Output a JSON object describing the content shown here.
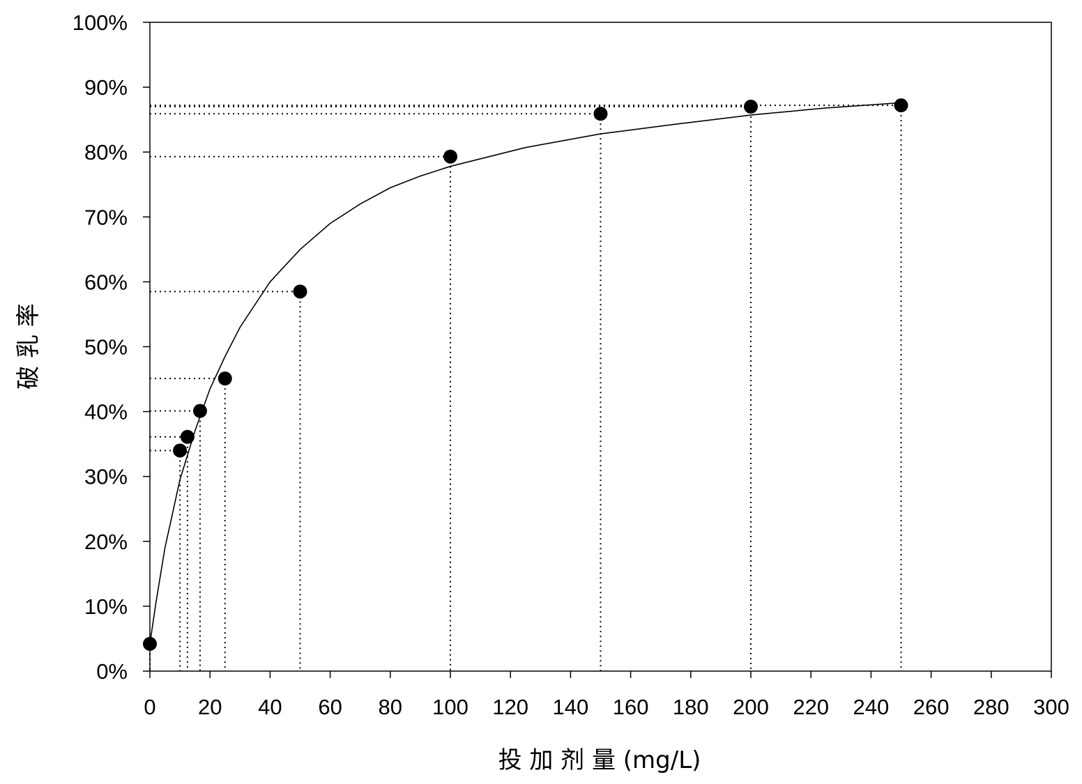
{
  "chart_data": {
    "type": "scatter",
    "title": "",
    "xlabel": "投 加 剂 量 (mg/L)",
    "ylabel": "破 乳 率",
    "xlim": [
      0,
      300
    ],
    "ylim": [
      0,
      100
    ],
    "x_ticks": [
      "0",
      "20",
      "40",
      "60",
      "80",
      "100",
      "120",
      "140",
      "160",
      "180",
      "200",
      "220",
      "240",
      "260",
      "280",
      "300"
    ],
    "y_ticks": [
      "0%",
      "10%",
      "20%",
      "30%",
      "40%",
      "50%",
      "60%",
      "70%",
      "80%",
      "90%",
      "100%"
    ],
    "grid": false,
    "legend": "none",
    "series": [
      {
        "points": [
          {
            "x": 0,
            "y": 4.2
          },
          {
            "x": 10,
            "y": 34.0
          },
          {
            "x": 12.5,
            "y": 36.1
          },
          {
            "x": 16.7,
            "y": 40.1
          },
          {
            "x": 25,
            "y": 45.1
          },
          {
            "x": 50,
            "y": 58.5
          },
          {
            "x": 100,
            "y": 79.3
          },
          {
            "x": 150,
            "y": 85.9
          },
          {
            "x": 200,
            "y": 87.0
          },
          {
            "x": 250,
            "y": 87.2
          }
        ],
        "marker_color": "#000000",
        "reference_lines": "dotted"
      }
    ],
    "fitted_curve": {
      "color": "#000000",
      "points": [
        {
          "x": 0,
          "y": 4.2
        },
        {
          "x": 2,
          "y": 10.5
        },
        {
          "x": 5,
          "y": 19
        },
        {
          "x": 10,
          "y": 29.5
        },
        {
          "x": 15,
          "y": 37
        },
        {
          "x": 20,
          "y": 43.5
        },
        {
          "x": 25,
          "y": 48.5
        },
        {
          "x": 30,
          "y": 53
        },
        {
          "x": 40,
          "y": 60
        },
        {
          "x": 50,
          "y": 65
        },
        {
          "x": 60,
          "y": 69
        },
        {
          "x": 70,
          "y": 72
        },
        {
          "x": 80,
          "y": 74.5
        },
        {
          "x": 90,
          "y": 76.3
        },
        {
          "x": 100,
          "y": 77.8
        },
        {
          "x": 125,
          "y": 80.7
        },
        {
          "x": 150,
          "y": 82.8
        },
        {
          "x": 175,
          "y": 84.3
        },
        {
          "x": 200,
          "y": 85.7
        },
        {
          "x": 225,
          "y": 86.8
        },
        {
          "x": 250,
          "y": 87.6
        }
      ]
    }
  }
}
